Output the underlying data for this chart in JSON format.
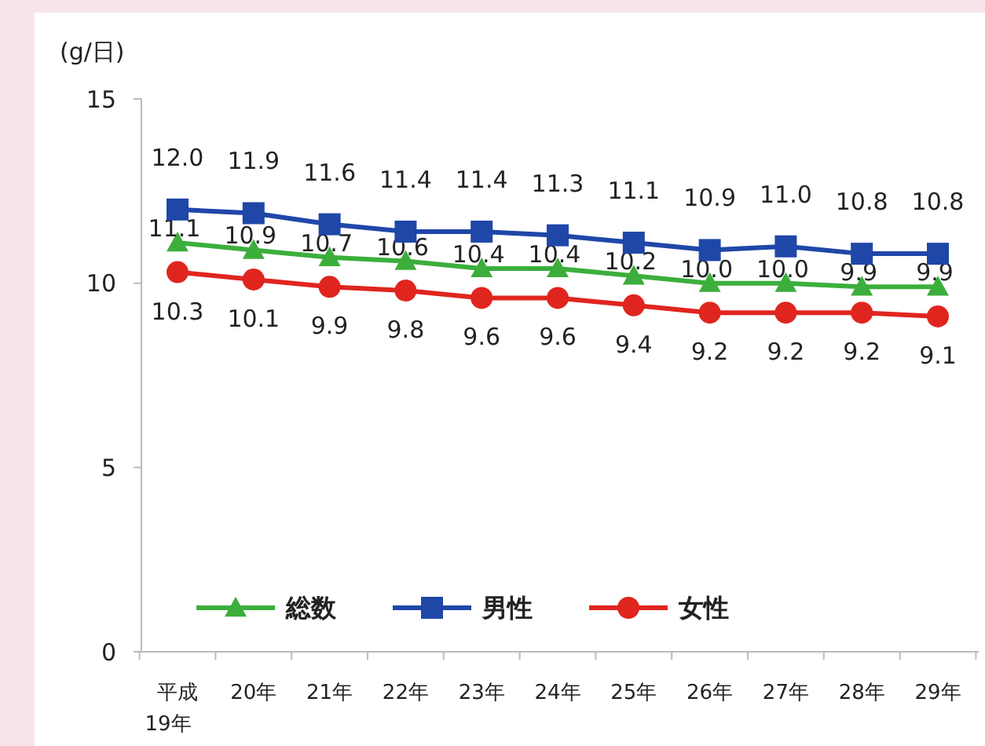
{
  "chart_data": {
    "type": "line",
    "ylabel": "(g/日)",
    "categories": [
      "平成19年",
      "20年",
      "21年",
      "22年",
      "23年",
      "24年",
      "25年",
      "26年",
      "27年",
      "28年",
      "29年"
    ],
    "series": [
      {
        "name": "総数",
        "color": "#3cae3c",
        "marker": "triangle",
        "values": [
          11.1,
          10.9,
          10.7,
          10.6,
          10.4,
          10.4,
          10.2,
          10.0,
          10.0,
          9.9,
          9.9
        ],
        "value_labels": [
          "11.1",
          "10.9",
          "10.7",
          "10.6",
          "10.4",
          "10.4",
          "10.2",
          "10.0",
          "10.0",
          "9.9",
          "9.9"
        ]
      },
      {
        "name": "男性",
        "color": "#1f47a8",
        "marker": "square",
        "values": [
          12.0,
          11.9,
          11.6,
          11.4,
          11.4,
          11.3,
          11.1,
          10.9,
          11.0,
          10.8,
          10.8
        ],
        "value_labels": [
          "12.0",
          "11.9",
          "11.6",
          "11.4",
          "11.4",
          "11.3",
          "11.1",
          "10.9",
          "11.0",
          "10.8",
          "10.8"
        ]
      },
      {
        "name": "女性",
        "color": "#e0251f",
        "marker": "circle",
        "values": [
          10.3,
          10.1,
          9.9,
          9.8,
          9.6,
          9.6,
          9.4,
          9.2,
          9.2,
          9.2,
          9.1
        ],
        "value_labels": [
          "10.3",
          "10.1",
          "9.9",
          "9.8",
          "9.6",
          "9.6",
          "9.4",
          "9.2",
          "9.2",
          "9.2",
          "9.1"
        ]
      }
    ],
    "ylim": [
      0,
      15
    ],
    "yticks": [
      0,
      5,
      10,
      15
    ],
    "legend": "bottom left",
    "grid": false
  }
}
